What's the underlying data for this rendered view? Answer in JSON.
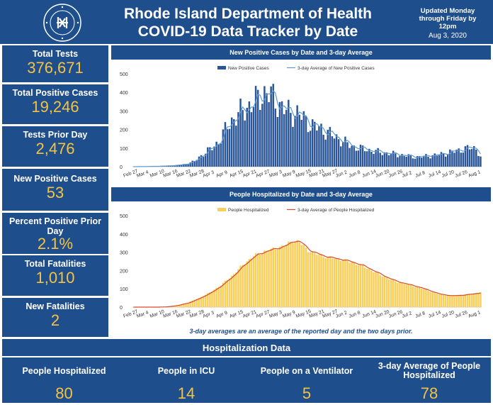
{
  "header": {
    "title_line1": "Rhode Island Department of Health",
    "title_line2": "COVID-19 Data Tracker by Date",
    "update_note": "Updated Monday through Friday by 12pm",
    "update_date": "Aug 3, 2020",
    "logo_text": "RHODE ISLAND DEPARTMENT OF HEALTH"
  },
  "stats": [
    {
      "label": "Total Tests",
      "value": "376,671"
    },
    {
      "label": "Total Positive Cases",
      "value": "19,246"
    },
    {
      "label": "Tests Prior Day",
      "value": "2,476"
    },
    {
      "label": "New Positive Cases",
      "value": "53"
    },
    {
      "label": "Percent Positive Prior Day",
      "value": "2.1%"
    },
    {
      "label": "Total Fatalities",
      "value": "1,010"
    },
    {
      "label": "New Fatalities",
      "value": "2"
    }
  ],
  "note": "3-day averages are an average of the reported day and the two days prior.",
  "hospitalization": {
    "title": "Hospitalization Data",
    "items": [
      {
        "label": "People Hospitalized",
        "value": "80"
      },
      {
        "label": "People in ICU",
        "value": "14"
      },
      {
        "label": "People on a Ventilator",
        "value": "5"
      },
      {
        "label": "3-day Average of People Hospitalized",
        "value": "78"
      }
    ]
  },
  "colors": {
    "navy": "#1f4e8c",
    "gold": "#f5c342",
    "bar_blue": "#2a5597",
    "line_blue": "#5b9bd5",
    "bar_yellow": "#f7cf5a",
    "line_red": "#d9492a"
  },
  "chart_data": [
    {
      "type": "bar",
      "title": "New Positive Cases by Date and 3-day Average",
      "legend": [
        "New Positive Cases",
        "3-day Average of New Positive Cases"
      ],
      "legend_position": "top-center",
      "ylim": [
        0,
        500
      ],
      "yticks": [
        0,
        100,
        200,
        300,
        400,
        500
      ],
      "x_tick_labels": [
        "Feb 27",
        "Mar 4",
        "Mar 10",
        "Mar 16",
        "Mar 22",
        "Mar 28",
        "Apr 3",
        "Apr 9",
        "Apr 15",
        "Apr 21",
        "Apr 27",
        "May 3",
        "May 9",
        "May 15",
        "May 21",
        "May 27",
        "Jun 2",
        "Jun 8",
        "Jun 14",
        "Jun 20",
        "Jun 26",
        "Jul 2",
        "Jul 8",
        "Jul 14",
        "Jul 20",
        "Jul 26",
        "Aug 1"
      ],
      "keypoints": [
        [
          0,
          0
        ],
        [
          5,
          1
        ],
        [
          10,
          2
        ],
        [
          15,
          4
        ],
        [
          20,
          8
        ],
        [
          24,
          14
        ],
        [
          28,
          30
        ],
        [
          31,
          60
        ],
        [
          34,
          85
        ],
        [
          37,
          110
        ],
        [
          40,
          150
        ],
        [
          43,
          220
        ],
        [
          46,
          260
        ],
        [
          49,
          290
        ],
        [
          52,
          320
        ],
        [
          55,
          340
        ],
        [
          58,
          380
        ],
        [
          61,
          400
        ],
        [
          64,
          370
        ],
        [
          67,
          330
        ],
        [
          70,
          300
        ],
        [
          73,
          290
        ],
        [
          76,
          280
        ],
        [
          79,
          250
        ],
        [
          82,
          220
        ],
        [
          85,
          210
        ],
        [
          88,
          190
        ],
        [
          91,
          170
        ],
        [
          94,
          150
        ],
        [
          97,
          130
        ],
        [
          100,
          110
        ],
        [
          103,
          100
        ],
        [
          106,
          95
        ],
        [
          109,
          85
        ],
        [
          112,
          80
        ],
        [
          115,
          75
        ],
        [
          118,
          70
        ],
        [
          121,
          65
        ],
        [
          124,
          60
        ],
        [
          127,
          55
        ],
        [
          130,
          52
        ],
        [
          133,
          55
        ],
        [
          136,
          60
        ],
        [
          139,
          62
        ],
        [
          142,
          70
        ],
        [
          145,
          78
        ],
        [
          148,
          85
        ],
        [
          151,
          95
        ],
        [
          154,
          100
        ],
        [
          157,
          98
        ],
        [
          159,
          53
        ]
      ]
    },
    {
      "type": "bar",
      "title": "People Hospitalized by Date and 3-day Average",
      "legend": [
        "People Hospitalized",
        "3-day Average of People Hospitalized"
      ],
      "legend_position": "top-center",
      "ylim": [
        0,
        500
      ],
      "yticks": [
        0,
        100,
        200,
        300,
        400,
        500
      ],
      "x_tick_labels": [
        "Feb 27",
        "Mar 4",
        "Mar 10",
        "Mar 16",
        "Mar 22",
        "Mar 28",
        "Apr 3",
        "Apr 9",
        "Apr 15",
        "Apr 21",
        "Apr 27",
        "May 3",
        "May 9",
        "May 15",
        "May 21",
        "May 27",
        "Jun 2",
        "Jun 8",
        "Jun 14",
        "Jun 20",
        "Jun 26",
        "Jul 2",
        "Jul 8",
        "Jul 14",
        "Jul 20",
        "Jul 26",
        "Aug 1"
      ],
      "keypoints": [
        [
          0,
          0
        ],
        [
          10,
          0
        ],
        [
          15,
          2
        ],
        [
          20,
          10
        ],
        [
          25,
          25
        ],
        [
          30,
          50
        ],
        [
          35,
          80
        ],
        [
          40,
          120
        ],
        [
          45,
          170
        ],
        [
          50,
          230
        ],
        [
          55,
          280
        ],
        [
          60,
          305
        ],
        [
          65,
          320
        ],
        [
          70,
          340
        ],
        [
          73,
          365
        ],
        [
          76,
          355
        ],
        [
          80,
          310
        ],
        [
          85,
          285
        ],
        [
          90,
          270
        ],
        [
          95,
          260
        ],
        [
          100,
          245
        ],
        [
          105,
          225
        ],
        [
          110,
          195
        ],
        [
          115,
          165
        ],
        [
          120,
          140
        ],
        [
          125,
          125
        ],
        [
          130,
          110
        ],
        [
          135,
          90
        ],
        [
          140,
          70
        ],
        [
          145,
          62
        ],
        [
          150,
          65
        ],
        [
          155,
          72
        ],
        [
          159,
          80
        ]
      ]
    }
  ]
}
